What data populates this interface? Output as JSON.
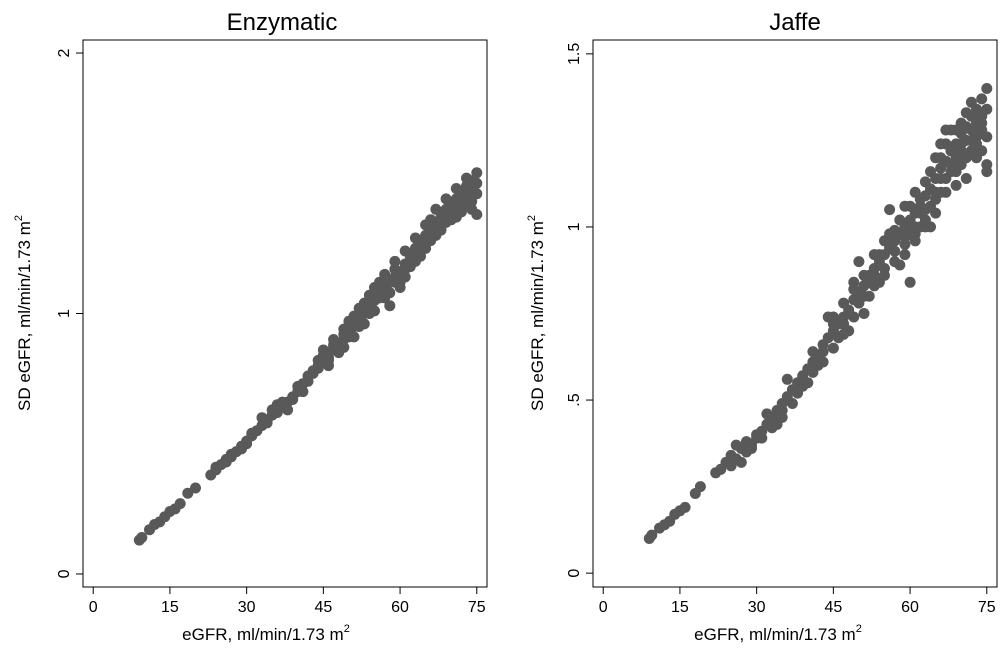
{
  "figure": {
    "marker_color": "#595959",
    "axis_color": "#000000"
  },
  "chart_data": [
    {
      "type": "scatter",
      "title": "Enzymatic",
      "xlabel": "eGFR, ml/min/1.73 m",
      "ylabel": "SD eGFR, ml/min/1.73 m",
      "unit_superscript": "2",
      "xlim": [
        -2,
        77
      ],
      "ylim": [
        -0.05,
        2.05
      ],
      "xticks": [
        0,
        15,
        30,
        45,
        60,
        75
      ],
      "xtick_labels": [
        "0",
        "15",
        "30",
        "45",
        "60",
        "75"
      ],
      "yticks": [
        0,
        1,
        2
      ],
      "ytick_labels": [
        "0",
        "1",
        "2"
      ],
      "grid": false,
      "legend": "none",
      "points": [
        [
          9,
          0.13
        ],
        [
          9.5,
          0.14
        ],
        [
          11,
          0.17
        ],
        [
          12,
          0.19
        ],
        [
          13,
          0.2
        ],
        [
          14,
          0.22
        ],
        [
          15,
          0.24
        ],
        [
          16,
          0.25
        ],
        [
          17,
          0.27
        ],
        [
          18.5,
          0.31
        ],
        [
          20,
          0.33
        ],
        [
          23,
          0.38
        ],
        [
          24,
          0.4
        ],
        [
          25,
          0.42
        ],
        [
          26,
          0.44
        ],
        [
          27,
          0.46
        ],
        [
          28,
          0.47
        ],
        [
          29,
          0.49
        ],
        [
          30,
          0.51
        ],
        [
          31,
          0.53
        ],
        [
          32,
          0.55
        ],
        [
          33,
          0.57
        ],
        [
          34,
          0.59
        ],
        [
          35,
          0.61
        ],
        [
          36,
          0.62
        ],
        [
          37,
          0.64
        ],
        [
          38,
          0.66
        ],
        [
          39,
          0.68
        ],
        [
          40,
          0.7
        ],
        [
          41,
          0.73
        ],
        [
          42,
          0.74
        ],
        [
          43,
          0.77
        ],
        [
          44,
          0.79
        ],
        [
          45,
          0.81
        ],
        [
          46,
          0.83
        ],
        [
          47,
          0.86
        ],
        [
          48,
          0.88
        ],
        [
          49,
          0.9
        ],
        [
          50,
          0.93
        ],
        [
          51,
          0.95
        ],
        [
          52,
          0.98
        ],
        [
          53,
          1.0
        ],
        [
          54,
          1.02
        ],
        [
          55,
          1.05
        ],
        [
          56,
          1.08
        ],
        [
          57,
          1.1
        ],
        [
          58,
          1.12
        ],
        [
          59,
          1.14
        ],
        [
          60,
          1.16
        ],
        [
          61,
          1.19
        ],
        [
          62,
          1.22
        ],
        [
          63,
          1.25
        ],
        [
          64,
          1.28
        ],
        [
          65,
          1.3
        ],
        [
          66,
          1.32
        ],
        [
          67,
          1.35
        ],
        [
          68,
          1.37
        ],
        [
          69,
          1.4
        ],
        [
          70,
          1.42
        ],
        [
          71,
          1.44
        ],
        [
          72,
          1.46
        ],
        [
          73,
          1.49
        ],
        [
          74,
          1.51
        ],
        [
          75,
          1.54
        ],
        [
          33,
          0.6
        ],
        [
          36,
          0.65
        ],
        [
          38,
          0.63
        ],
        [
          41,
          0.7
        ],
        [
          44,
          0.82
        ],
        [
          46,
          0.8
        ],
        [
          47,
          0.9
        ],
        [
          49,
          0.87
        ],
        [
          50,
          0.97
        ],
        [
          51,
          0.91
        ],
        [
          52,
          1.02
        ],
        [
          53,
          0.96
        ],
        [
          54,
          1.07
        ],
        [
          55,
          1.01
        ],
        [
          56,
          1.12
        ],
        [
          57,
          1.06
        ],
        [
          58,
          1.03
        ],
        [
          59,
          1.17
        ],
        [
          60,
          1.1
        ],
        [
          61,
          1.14
        ],
        [
          62,
          1.18
        ],
        [
          63,
          1.2
        ],
        [
          64,
          1.22
        ],
        [
          65,
          1.25
        ],
        [
          66,
          1.28
        ],
        [
          67,
          1.3
        ],
        [
          68,
          1.33
        ],
        [
          69,
          1.35
        ],
        [
          70,
          1.38
        ],
        [
          71,
          1.4
        ],
        [
          72,
          1.42
        ],
        [
          73,
          1.45
        ],
        [
          74,
          1.47
        ],
        [
          75,
          1.38
        ],
        [
          66,
          1.36
        ],
        [
          68,
          1.32
        ],
        [
          70,
          1.36
        ],
        [
          72,
          1.39
        ],
        [
          74,
          1.43
        ],
        [
          75,
          1.46
        ],
        [
          71,
          1.48
        ],
        [
          73,
          1.52
        ],
        [
          69,
          1.44
        ],
        [
          67,
          1.4
        ],
        [
          65,
          1.34
        ],
        [
          63,
          1.29
        ],
        [
          61,
          1.24
        ],
        [
          59,
          1.2
        ],
        [
          57,
          1.15
        ],
        [
          55,
          1.1
        ],
        [
          53,
          1.04
        ],
        [
          51,
          0.99
        ],
        [
          49,
          0.94
        ],
        [
          47,
          0.87
        ],
        [
          45,
          0.84
        ],
        [
          43,
          0.78
        ],
        [
          42,
          0.76
        ],
        [
          40,
          0.72
        ],
        [
          39,
          0.67
        ],
        [
          37,
          0.66
        ],
        [
          35,
          0.63
        ],
        [
          34,
          0.58
        ],
        [
          31,
          0.54
        ],
        [
          30,
          0.5
        ],
        [
          29,
          0.48
        ],
        [
          27,
          0.45
        ],
        [
          26,
          0.43
        ],
        [
          24,
          0.41
        ],
        [
          64,
          1.24
        ],
        [
          62,
          1.2
        ],
        [
          60,
          1.12
        ],
        [
          58,
          1.08
        ],
        [
          56,
          1.06
        ],
        [
          54,
          1.0
        ],
        [
          52,
          0.95
        ],
        [
          50,
          0.91
        ],
        [
          48,
          0.85
        ],
        [
          46,
          0.82
        ],
        [
          44,
          0.8
        ],
        [
          66,
          1.3
        ],
        [
          68,
          1.36
        ],
        [
          70,
          1.4
        ],
        [
          72,
          1.44
        ],
        [
          74,
          1.4
        ],
        [
          75,
          1.5
        ],
        [
          73,
          1.42
        ],
        [
          71,
          1.37
        ],
        [
          69,
          1.38
        ],
        [
          67,
          1.33
        ],
        [
          65,
          1.28
        ],
        [
          63,
          1.22
        ],
        [
          61,
          1.17
        ],
        [
          59,
          1.12
        ],
        [
          57,
          1.13
        ],
        [
          55,
          1.08
        ],
        [
          53,
          1.02
        ],
        [
          51,
          0.97
        ],
        [
          49,
          0.92
        ],
        [
          47,
          0.88
        ],
        [
          45,
          0.86
        ]
      ]
    },
    {
      "type": "scatter",
      "title": "Jaffe",
      "xlabel": "eGFR, ml/min/1.73 m",
      "ylabel": "SD eGFR, ml/min/1.73 m",
      "unit_superscript": "2",
      "xlim": [
        -2,
        77
      ],
      "ylim": [
        -0.04,
        1.54
      ],
      "xticks": [
        0,
        15,
        30,
        45,
        60,
        75
      ],
      "xtick_labels": [
        "0",
        "15",
        "30",
        "45",
        "60",
        "75"
      ],
      "yticks": [
        0,
        0.5,
        1,
        1.5
      ],
      "ytick_labels": [
        "0",
        ".5",
        "1",
        "1.5"
      ],
      "grid": false,
      "legend": "none",
      "points": [
        [
          9,
          0.1
        ],
        [
          9.5,
          0.11
        ],
        [
          11,
          0.13
        ],
        [
          12,
          0.14
        ],
        [
          13,
          0.15
        ],
        [
          14,
          0.17
        ],
        [
          15,
          0.18
        ],
        [
          16,
          0.19
        ],
        [
          18,
          0.23
        ],
        [
          19,
          0.25
        ],
        [
          22,
          0.29
        ],
        [
          23,
          0.3
        ],
        [
          24,
          0.32
        ],
        [
          25,
          0.34
        ],
        [
          26,
          0.33
        ],
        [
          27,
          0.36
        ],
        [
          28,
          0.35
        ],
        [
          29,
          0.37
        ],
        [
          30,
          0.39
        ],
        [
          31,
          0.41
        ],
        [
          32,
          0.43
        ],
        [
          33,
          0.45
        ],
        [
          34,
          0.47
        ],
        [
          35,
          0.49
        ],
        [
          36,
          0.51
        ],
        [
          37,
          0.53
        ],
        [
          38,
          0.55
        ],
        [
          39,
          0.57
        ],
        [
          40,
          0.59
        ],
        [
          41,
          0.61
        ],
        [
          42,
          0.63
        ],
        [
          43,
          0.66
        ],
        [
          44,
          0.68
        ],
        [
          45,
          0.7
        ],
        [
          46,
          0.72
        ],
        [
          47,
          0.74
        ],
        [
          48,
          0.76
        ],
        [
          49,
          0.79
        ],
        [
          50,
          0.81
        ],
        [
          51,
          0.83
        ],
        [
          52,
          0.86
        ],
        [
          53,
          0.88
        ],
        [
          54,
          0.9
        ],
        [
          55,
          0.92
        ],
        [
          56,
          0.94
        ],
        [
          57,
          0.96
        ],
        [
          58,
          0.98
        ],
        [
          59,
          1.0
        ],
        [
          60,
          1.02
        ],
        [
          61,
          1.04
        ],
        [
          62,
          1.06
        ],
        [
          63,
          1.09
        ],
        [
          64,
          1.11
        ],
        [
          65,
          1.14
        ],
        [
          66,
          1.17
        ],
        [
          67,
          1.19
        ],
        [
          68,
          1.22
        ],
        [
          69,
          1.24
        ],
        [
          70,
          1.27
        ],
        [
          71,
          1.29
        ],
        [
          72,
          1.32
        ],
        [
          73,
          1.34
        ],
        [
          74,
          1.37
        ],
        [
          75,
          1.4
        ],
        [
          26,
          0.37
        ],
        [
          28,
          0.38
        ],
        [
          30,
          0.4
        ],
        [
          32,
          0.46
        ],
        [
          33,
          0.42
        ],
        [
          35,
          0.45
        ],
        [
          36,
          0.56
        ],
        [
          38,
          0.52
        ],
        [
          40,
          0.55
        ],
        [
          41,
          0.64
        ],
        [
          42,
          0.6
        ],
        [
          44,
          0.74
        ],
        [
          45,
          0.65
        ],
        [
          46,
          0.68
        ],
        [
          47,
          0.72
        ],
        [
          48,
          0.7
        ],
        [
          49,
          0.84
        ],
        [
          50,
          0.78
        ],
        [
          51,
          0.75
        ],
        [
          52,
          0.8
        ],
        [
          53,
          0.92
        ],
        [
          54,
          0.84
        ],
        [
          55,
          0.86
        ],
        [
          56,
          1.05
        ],
        [
          57,
          0.93
        ],
        [
          58,
          0.89
        ],
        [
          59,
          0.95
        ],
        [
          60,
          0.84
        ],
        [
          61,
          0.98
        ],
        [
          62,
          1.08
        ],
        [
          63,
          1.02
        ],
        [
          64,
          1.0
        ],
        [
          65,
          1.08
        ],
        [
          66,
          1.24
        ],
        [
          67,
          1.1
        ],
        [
          68,
          1.16
        ],
        [
          69,
          1.12
        ],
        [
          70,
          1.18
        ],
        [
          71,
          1.14
        ],
        [
          72,
          1.22
        ],
        [
          73,
          1.26
        ],
        [
          74,
          1.3
        ],
        [
          75,
          1.16
        ],
        [
          64,
          1.16
        ],
        [
          66,
          1.2
        ],
        [
          68,
          1.28
        ],
        [
          70,
          1.3
        ],
        [
          72,
          1.36
        ],
        [
          74,
          1.32
        ],
        [
          75,
          1.26
        ],
        [
          73,
          1.2
        ],
        [
          71,
          1.25
        ],
        [
          69,
          1.2
        ],
        [
          67,
          1.24
        ],
        [
          65,
          1.04
        ],
        [
          63,
          1.0
        ],
        [
          61,
          0.96
        ],
        [
          59,
          0.92
        ],
        [
          57,
          0.9
        ],
        [
          55,
          0.96
        ],
        [
          53,
          0.83
        ],
        [
          51,
          0.8
        ],
        [
          49,
          0.74
        ],
        [
          47,
          0.69
        ],
        [
          45,
          0.72
        ],
        [
          43,
          0.61
        ],
        [
          41,
          0.58
        ],
        [
          39,
          0.54
        ],
        [
          37,
          0.49
        ],
        [
          35,
          0.47
        ],
        [
          34,
          0.43
        ],
        [
          31,
          0.39
        ],
        [
          29,
          0.36
        ],
        [
          27,
          0.32
        ],
        [
          25,
          0.31
        ],
        [
          60,
          0.98
        ],
        [
          62,
          1.0
        ],
        [
          64,
          1.06
        ],
        [
          66,
          1.14
        ],
        [
          68,
          1.18
        ],
        [
          70,
          1.22
        ],
        [
          72,
          1.28
        ],
        [
          74,
          1.22
        ],
        [
          75,
          1.34
        ],
        [
          73,
          1.3
        ],
        [
          71,
          1.33
        ],
        [
          69,
          1.28
        ],
        [
          67,
          1.28
        ],
        [
          65,
          1.2
        ],
        [
          63,
          1.13
        ],
        [
          61,
          1.1
        ],
        [
          59,
          1.06
        ],
        [
          57,
          0.99
        ],
        [
          55,
          0.88
        ],
        [
          53,
          0.86
        ],
        [
          51,
          0.86
        ],
        [
          49,
          0.82
        ],
        [
          47,
          0.78
        ],
        [
          45,
          0.74
        ],
        [
          43,
          0.64
        ],
        [
          50,
          0.9
        ],
        [
          52,
          0.84
        ],
        [
          54,
          0.92
        ],
        [
          56,
          0.98
        ],
        [
          58,
          1.02
        ],
        [
          60,
          1.06
        ],
        [
          62,
          1.04
        ],
        [
          66,
          1.1
        ],
        [
          68,
          1.22
        ],
        [
          70,
          1.24
        ],
        [
          72,
          1.25
        ],
        [
          74,
          1.28
        ],
        [
          75,
          1.18
        ],
        [
          73,
          1.24
        ],
        [
          71,
          1.2
        ],
        [
          69,
          1.16
        ],
        [
          67,
          1.14
        ],
        [
          65,
          1.1
        ],
        [
          63,
          1.05
        ],
        [
          61,
          1.0
        ],
        [
          59,
          0.97
        ]
      ]
    }
  ]
}
